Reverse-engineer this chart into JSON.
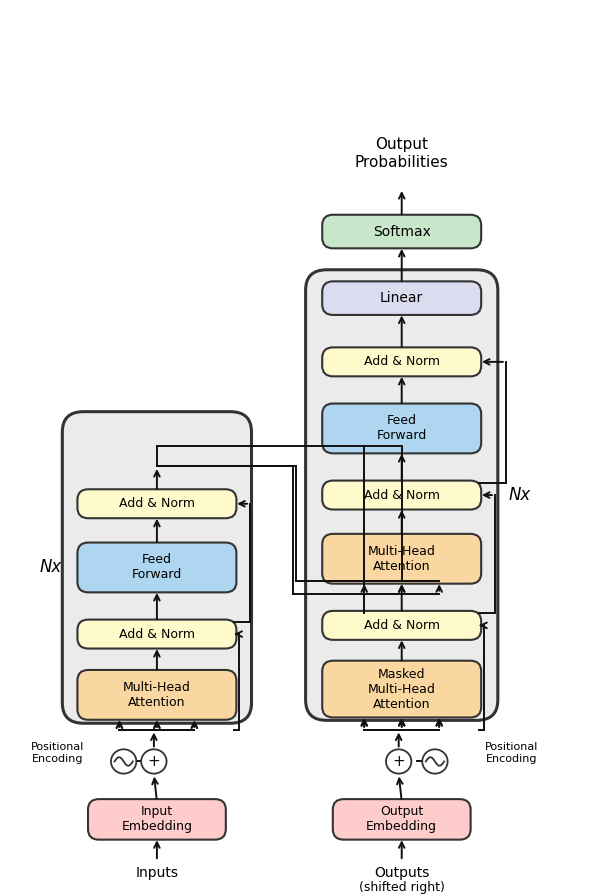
{
  "figsize": [
    6.1,
    8.96
  ],
  "dpi": 100,
  "bg_color": "#ffffff",
  "colors": {
    "embedding": "#FFCCCC",
    "add_norm": "#FFFACC",
    "feed_forward": "#AED6F1",
    "attention": "#FAD7A0",
    "linear": "#DCDCF0",
    "softmax": "#C8E6C9",
    "nx_box": "#EBEBEB",
    "box_edge": "#222222"
  },
  "enc_x": 2.55,
  "dec_x": 6.6,
  "xlim": [
    0,
    10
  ],
  "ylim": [
    0,
    15.2
  ]
}
